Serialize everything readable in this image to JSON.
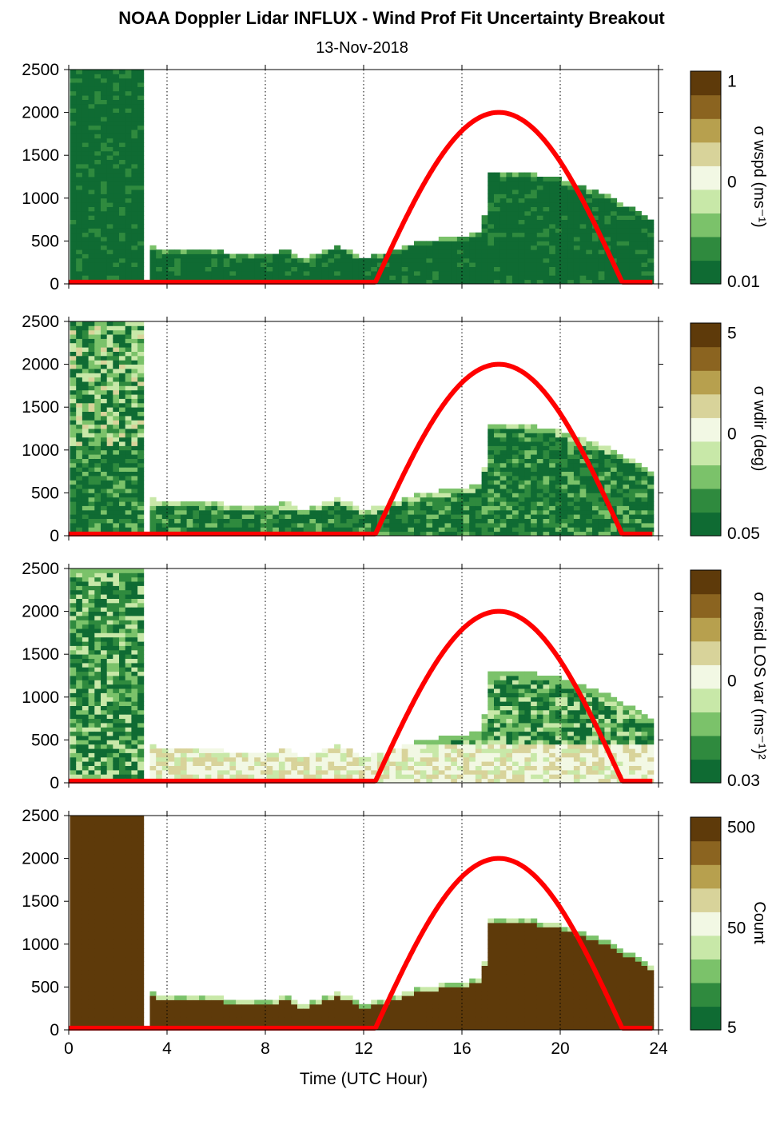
{
  "title": "NOAA Doppler Lidar INFLUX - Wind Prof Fit Uncertainty Breakout",
  "subtitle": "13-Nov-2018",
  "colors": {
    "sun_curve": "#ff0000",
    "palette": [
      "#0f6b33",
      "#2f8a3e",
      "#7bc26a",
      "#c8e8a8",
      "#f2f8e4",
      "#d8d39a",
      "#b7a04e",
      "#8b6420",
      "#5e3a0a"
    ]
  },
  "chart_data": [
    {
      "type": "heatmap",
      "title": "",
      "xlabel": "",
      "ylabel": "",
      "colorbar_label": "σ wspd (ms⁻¹)",
      "colorbar_ticks": [
        "1",
        "0",
        "0.01"
      ],
      "xlim": [
        0,
        24
      ],
      "ylim": [
        0,
        2500
      ],
      "x_ticks": [
        0,
        4,
        8,
        12,
        16,
        20,
        24
      ],
      "y_ticks": [
        0,
        500,
        1000,
        1500,
        2000,
        2500
      ],
      "grid": "vertical dotted lines at 4-hour ticks"
    },
    {
      "type": "heatmap",
      "title": "",
      "xlabel": "",
      "ylabel": "",
      "colorbar_label": "σ wdir (deg)",
      "colorbar_ticks": [
        "5",
        "0",
        "0.05"
      ],
      "xlim": [
        0,
        24
      ],
      "ylim": [
        0,
        2500
      ],
      "x_ticks": [
        0,
        4,
        8,
        12,
        16,
        20,
        24
      ],
      "y_ticks": [
        0,
        500,
        1000,
        1500,
        2000,
        2500
      ],
      "grid": "vertical dotted lines at 4-hour ticks"
    },
    {
      "type": "heatmap",
      "title": "",
      "xlabel": "",
      "ylabel": "",
      "colorbar_label": "σ resid LOS var (ms⁻¹)²",
      "colorbar_ticks": [
        "",
        "0",
        "0.03"
      ],
      "xlim": [
        0,
        24
      ],
      "ylim": [
        0,
        2500
      ],
      "x_ticks": [
        0,
        4,
        8,
        12,
        16,
        20,
        24
      ],
      "y_ticks": [
        0,
        500,
        1000,
        1500,
        2000,
        2500
      ],
      "grid": "vertical dotted lines at 4-hour ticks"
    },
    {
      "type": "heatmap",
      "title": "",
      "xlabel": "Time (UTC Hour)",
      "ylabel": "",
      "colorbar_label": "Count",
      "colorbar_ticks": [
        "500",
        "50",
        "5"
      ],
      "xlim": [
        0,
        24
      ],
      "ylim": [
        0,
        2500
      ],
      "x_ticks": [
        0,
        4,
        8,
        12,
        16,
        20,
        24
      ],
      "y_ticks": [
        0,
        500,
        1000,
        1500,
        2000,
        2500
      ],
      "grid": "vertical dotted lines at 4-hour ticks"
    }
  ],
  "data_coverage": {
    "times": [
      0,
      0.5,
      1,
      1.5,
      2,
      2.5,
      2.95,
      3.1,
      4,
      5,
      6,
      7,
      8,
      9,
      9.5,
      10,
      11,
      12,
      13,
      14,
      15,
      16,
      16.9,
      17,
      18,
      19,
      20,
      21,
      22,
      23,
      23.8
    ],
    "top_height_m": [
      2500,
      2500,
      2500,
      2500,
      2500,
      2500,
      2500,
      420,
      380,
      380,
      360,
      330,
      330,
      360,
      250,
      330,
      420,
      280,
      350,
      450,
      500,
      520,
      600,
      1300,
      1280,
      1250,
      1200,
      1100,
      1000,
      850,
      720
    ]
  },
  "sun_elevation_curve": {
    "description_unit": "curve plotted on height axis",
    "times": [
      12.4,
      13,
      14,
      15,
      16,
      17,
      17.5,
      18,
      19,
      20,
      21,
      22,
      22.5,
      24
    ],
    "values": [
      20,
      450,
      1100,
      1550,
      1850,
      1980,
      2000,
      1980,
      1850,
      1550,
      1100,
      450,
      20,
      20
    ]
  }
}
